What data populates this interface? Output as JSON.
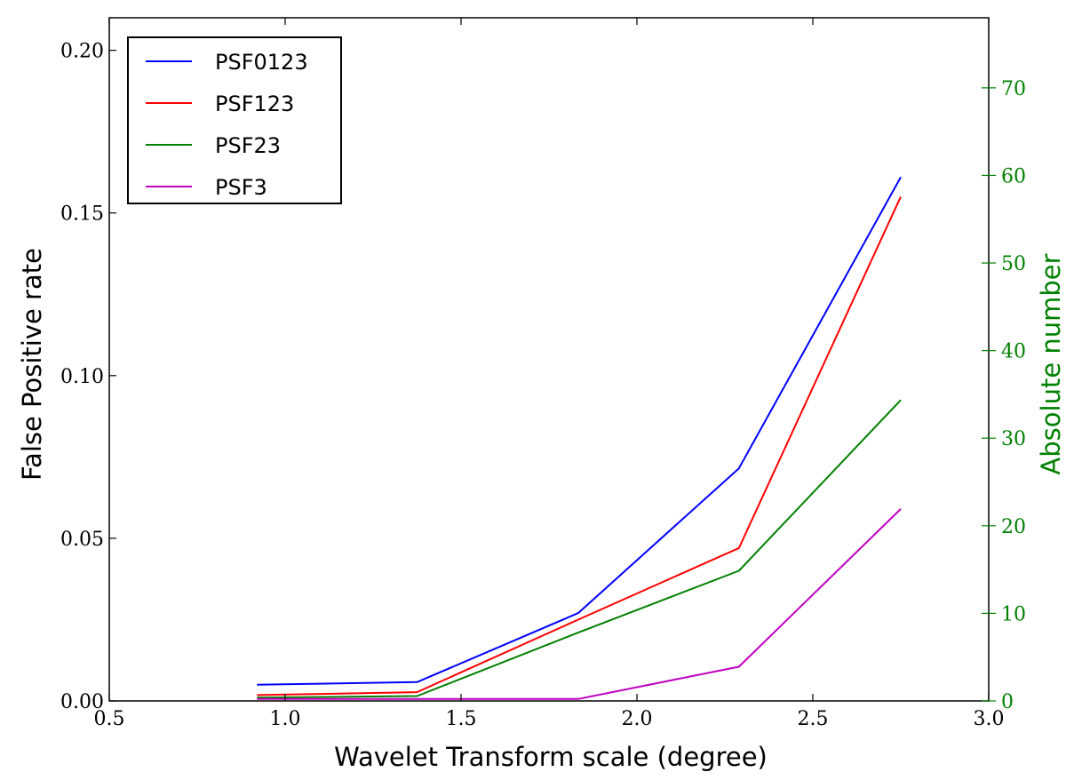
{
  "chart_data": {
    "type": "line",
    "title": "",
    "xlabel": "Wavelet Transform scale (degree)",
    "ylabel": "False Positive rate",
    "y2label": "Absolute number",
    "xlim": [
      0.5,
      3.0
    ],
    "ylim": [
      0.0,
      0.21
    ],
    "y2lim": [
      0,
      78
    ],
    "x_ticks": [
      "0.5",
      "1.0",
      "1.5",
      "2.0",
      "2.5",
      "3.0"
    ],
    "y_ticks": [
      "0.00",
      "0.05",
      "0.10",
      "0.15",
      "0.20"
    ],
    "y2_ticks": [
      "0",
      "10",
      "20",
      "30",
      "40",
      "50",
      "60",
      "70"
    ],
    "grid": false,
    "legend_position": "top-left",
    "x": [
      0.92,
      1.375,
      1.833,
      2.29,
      2.75
    ],
    "series": [
      {
        "name": "PSF0123",
        "color": "#0000ff",
        "values": [
          0.005,
          0.0058,
          0.027,
          0.0715,
          0.161
        ]
      },
      {
        "name": "PSF123",
        "color": "#ff0000",
        "values": [
          0.0018,
          0.0027,
          0.025,
          0.047,
          0.155
        ]
      },
      {
        "name": "PSF23",
        "color": "#008000",
        "values": [
          0.001,
          0.0015,
          0.021,
          0.04,
          0.0925
        ]
      },
      {
        "name": "PSF3",
        "color": "#bf00bf",
        "values": [
          0.0006,
          0.0006,
          0.0006,
          0.0105,
          0.059
        ]
      }
    ],
    "colors": {
      "axis": "#000000",
      "secondary_axis": "#008000"
    }
  }
}
